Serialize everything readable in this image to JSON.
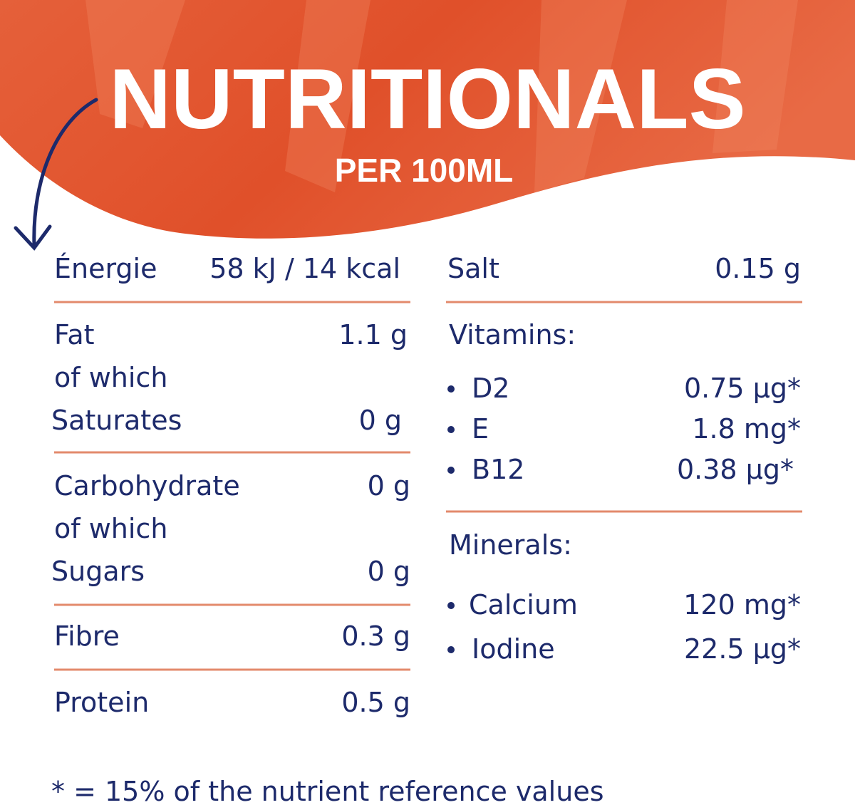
{
  "header": {
    "title": "NUTRITIONALS",
    "subtitle": "PER 100ML"
  },
  "left_rows": [
    {
      "label": "Énergie",
      "value": "58 kJ / 14 kcal"
    },
    {
      "label": "Fat",
      "value": "1.1 g"
    },
    {
      "label": "of which"
    },
    {
      "label": "Saturates",
      "value": "0 g"
    },
    {
      "label": "Carbohydrate",
      "value": "0 g"
    },
    {
      "label": "of which"
    },
    {
      "label": "Sugars",
      "value": "0 g"
    },
    {
      "label": "Fibre",
      "value": "0.3 g"
    },
    {
      "label": "Protein",
      "value": "0.5 g"
    }
  ],
  "salt": {
    "label": "Salt",
    "value": "0.15 g"
  },
  "vitamins": {
    "heading": "Vitamins:",
    "items": [
      {
        "label": "D2",
        "value": "0.75 µg*"
      },
      {
        "label": "E",
        "value": "1.8 mg*"
      },
      {
        "label": "B12",
        "value": "0.38 µg*"
      }
    ]
  },
  "minerals": {
    "heading": "Minerals:",
    "items": [
      {
        "label": "Calcium",
        "value": "120 mg*"
      },
      {
        "label": "Iodine",
        "value": "22.5 µg*"
      }
    ]
  },
  "footnote": "* = 15% of the nutrient reference values"
}
